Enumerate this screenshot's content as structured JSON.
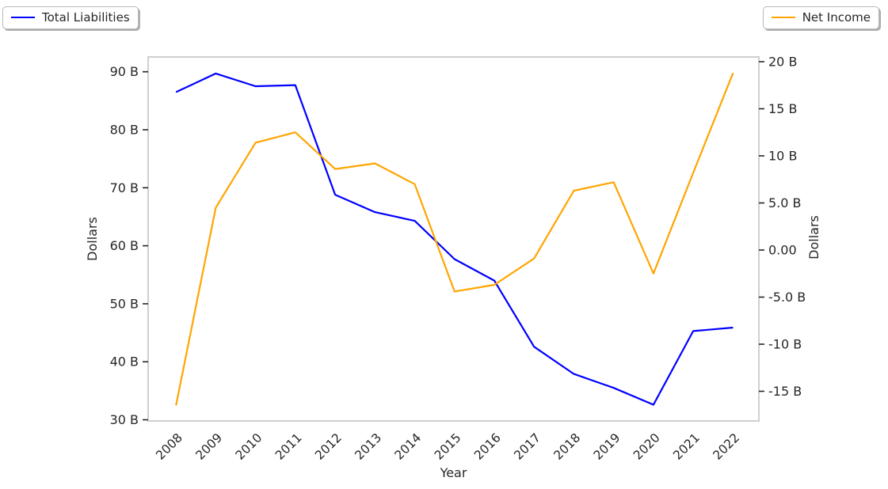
{
  "page": {
    "background": "#ffffff",
    "text_color": "#262626",
    "spine_color": "#cfcfcf"
  },
  "legends": {
    "total_liabilities": {
      "label": "Total Liabilities",
      "color": "#0000ff"
    },
    "net_income": {
      "label": "Net Income",
      "color": "#ffa500"
    }
  },
  "chart_data": {
    "type": "line",
    "title": "",
    "xlabel": "Year",
    "x": [
      2008,
      2009,
      2010,
      2011,
      2012,
      2013,
      2014,
      2015,
      2016,
      2017,
      2018,
      2019,
      2020,
      2021,
      2022
    ],
    "x_tick_labels": [
      "2008",
      "2009",
      "2010",
      "2011",
      "2012",
      "2013",
      "2014",
      "2015",
      "2016",
      "2017",
      "2018",
      "2019",
      "2020",
      "2021",
      "2022"
    ],
    "xlim": [
      2007.3,
      2022.65
    ],
    "grid": false,
    "legend_position": "top-left and top-right, outside axes",
    "left_axis": {
      "label": "Dollars",
      "range": [
        29.8,
        92.55
      ],
      "ticks": [
        {
          "value": 30,
          "label": "30 B"
        },
        {
          "value": 40,
          "label": "40 B"
        },
        {
          "value": 50,
          "label": "50 B"
        },
        {
          "value": 60,
          "label": "60 B"
        },
        {
          "value": 70,
          "label": "70 B"
        },
        {
          "value": 80,
          "label": "80 B"
        },
        {
          "value": 90,
          "label": "90 B"
        }
      ]
    },
    "right_axis": {
      "label": "Dollars",
      "range": [
        -18.15,
        20.5
      ],
      "ticks": [
        {
          "value": -15,
          "label": "-15 B"
        },
        {
          "value": -10,
          "label": "-10 B"
        },
        {
          "value": -5,
          "label": "-5.0 B"
        },
        {
          "value": 0,
          "label": "0.00"
        },
        {
          "value": 5,
          "label": "5.0 B"
        },
        {
          "value": 10,
          "label": "10 B"
        },
        {
          "value": 15,
          "label": "15 B"
        },
        {
          "value": 20,
          "label": "20 B"
        }
      ]
    },
    "series": [
      {
        "name": "Total Liabilities",
        "axis": "left",
        "color": "#0000ff",
        "unit": "billions of dollars",
        "values": [
          86.5,
          89.7,
          87.5,
          87.7,
          68.8,
          65.8,
          64.3,
          57.7,
          54.0,
          42.6,
          37.9,
          35.5,
          32.6,
          45.3,
          45.9
        ]
      },
      {
        "name": "Net Income",
        "axis": "right",
        "color": "#ffa500",
        "unit": "billions of dollars",
        "values": [
          -16.5,
          4.5,
          11.4,
          12.5,
          8.6,
          9.2,
          7.0,
          -4.4,
          -3.7,
          -0.9,
          6.3,
          7.2,
          -2.5,
          8.2,
          18.8
        ]
      }
    ]
  }
}
